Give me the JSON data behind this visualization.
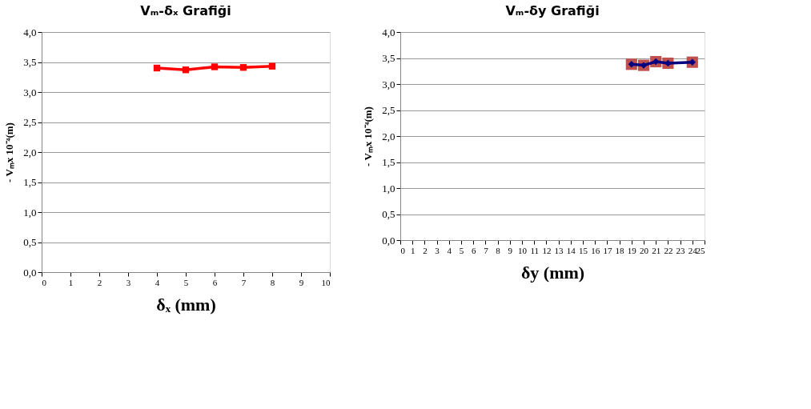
{
  "chart_data": [
    {
      "type": "line",
      "title": "Vₘ-δₓ Grafiği",
      "xlabel": "δₓ (mm)",
      "ylabel": "- Vₘx 10⁻⁴(m)",
      "x": [
        4,
        5,
        6,
        7,
        8
      ],
      "xlim": [
        0,
        10
      ],
      "xticks": [
        0,
        1,
        2,
        3,
        4,
        5,
        6,
        7,
        8,
        9,
        10
      ],
      "ylim": [
        0,
        4
      ],
      "yticks": [
        {
          "value": 0,
          "label": "0,0"
        },
        {
          "value": 0.5,
          "label": "0,5"
        },
        {
          "value": 1,
          "label": "1,0"
        },
        {
          "value": 1.5,
          "label": "1,5"
        },
        {
          "value": 2,
          "label": "2,0"
        },
        {
          "value": 2.5,
          "label": "2,5"
        },
        {
          "value": 3,
          "label": "3,0"
        },
        {
          "value": 3.5,
          "label": "3,5"
        },
        {
          "value": 4,
          "label": "4,0"
        }
      ],
      "grid": "y",
      "series": [
        {
          "type": "line",
          "color": "#ff0000",
          "marker": "square",
          "values": [
            3.4,
            3.37,
            3.42,
            3.41,
            3.43
          ]
        }
      ]
    },
    {
      "type": "line",
      "title": "Vₘ-δy Grafiği",
      "xlabel": "δy (mm)",
      "ylabel": "- Vₘx 10⁻⁴(m)",
      "x": [
        19,
        20,
        21,
        22,
        24
      ],
      "xlim": [
        0,
        25
      ],
      "xticks": [
        0,
        1,
        2,
        3,
        4,
        5,
        6,
        7,
        8,
        9,
        10,
        11,
        12,
        13,
        14,
        15,
        16,
        17,
        18,
        19,
        20,
        21,
        22,
        23,
        24,
        25
      ],
      "ylim": [
        0,
        4
      ],
      "yticks": [
        {
          "value": 0,
          "label": "0,0"
        },
        {
          "value": 0.5,
          "label": "0,5"
        },
        {
          "value": 1,
          "label": "1,0"
        },
        {
          "value": 1.5,
          "label": "1,5"
        },
        {
          "value": 2,
          "label": "2,0"
        },
        {
          "value": 2.5,
          "label": "2,5"
        },
        {
          "value": 3,
          "label": "3,0"
        },
        {
          "value": 3.5,
          "label": "3,5"
        },
        {
          "value": 4,
          "label": "4,0"
        }
      ],
      "grid": "y",
      "series": [
        {
          "type": "scatter",
          "color": "#c0504d",
          "marker": "square",
          "values": [
            3.38,
            3.36,
            3.43,
            3.4,
            3.42
          ]
        },
        {
          "type": "line",
          "color": "#000080",
          "marker": "diamond",
          "values": [
            3.38,
            3.36,
            3.43,
            3.4,
            3.42
          ]
        }
      ]
    }
  ]
}
